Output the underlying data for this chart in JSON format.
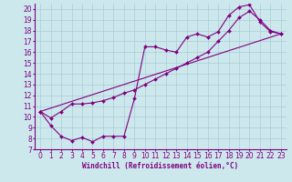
{
  "xlabel": "Windchill (Refroidissement éolien,°C)",
  "bg_color": "#cce8ec",
  "line_color": "#800080",
  "grid_color": "#aaccd4",
  "xlim": [
    -0.5,
    23.5
  ],
  "ylim": [
    7,
    20.5
  ],
  "xticks": [
    0,
    1,
    2,
    3,
    4,
    5,
    6,
    7,
    8,
    9,
    10,
    11,
    12,
    13,
    14,
    15,
    16,
    17,
    18,
    19,
    20,
    21,
    22,
    23
  ],
  "yticks": [
    7,
    8,
    9,
    10,
    11,
    12,
    13,
    14,
    15,
    16,
    17,
    18,
    19,
    20
  ],
  "line1_x": [
    0,
    1,
    2,
    3,
    4,
    5,
    6,
    7,
    8,
    9,
    10,
    11,
    12,
    13,
    14,
    15,
    16,
    17,
    18,
    19,
    20,
    21,
    22,
    23
  ],
  "line1_y": [
    10.5,
    9.2,
    8.2,
    7.8,
    8.1,
    7.7,
    8.2,
    8.2,
    8.2,
    11.7,
    16.5,
    16.5,
    16.2,
    16.0,
    17.4,
    17.7,
    17.4,
    17.9,
    19.4,
    20.2,
    20.4,
    18.8,
    17.9,
    17.7
  ],
  "line2_x": [
    0,
    1,
    2,
    3,
    4,
    5,
    6,
    7,
    8,
    9,
    10,
    11,
    12,
    13,
    14,
    15,
    16,
    17,
    18,
    19,
    20,
    21,
    22,
    23
  ],
  "line2_y": [
    10.5,
    9.9,
    10.5,
    11.2,
    11.2,
    11.3,
    11.5,
    11.8,
    12.2,
    12.5,
    13.0,
    13.5,
    14.0,
    14.5,
    15.0,
    15.5,
    16.0,
    17.0,
    18.0,
    19.2,
    19.8,
    19.0,
    18.0,
    17.7
  ],
  "line3_x": [
    0,
    23
  ],
  "line3_y": [
    10.5,
    17.7
  ],
  "marker": "D",
  "markersize": 2.0,
  "linewidth": 0.8,
  "tick_fontsize": 5.5,
  "xlabel_fontsize": 5.5
}
